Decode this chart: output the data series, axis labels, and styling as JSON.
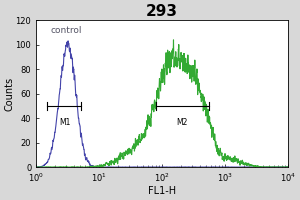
{
  "title": "293",
  "xlabel": "FL1-H",
  "ylabel": "Counts",
  "xlim_log": [
    1.0,
    10000.0
  ],
  "ylim": [
    0,
    120
  ],
  "yticks": [
    0,
    20,
    40,
    60,
    80,
    100,
    120
  ],
  "control_label": "control",
  "m1_label": "M1",
  "m2_label": "M2",
  "blue_color": "#4444aa",
  "green_color": "#33aa33",
  "outer_bg": "#d8d8d8",
  "title_fontsize": 11,
  "axis_fontsize": 7,
  "tick_fontsize": 6,
  "m1_y": 50,
  "m1_x1_log": 0.18,
  "m1_x2_log": 0.72,
  "m2_y": 50,
  "m2_x1_log": 1.9,
  "m2_x2_log": 2.75
}
